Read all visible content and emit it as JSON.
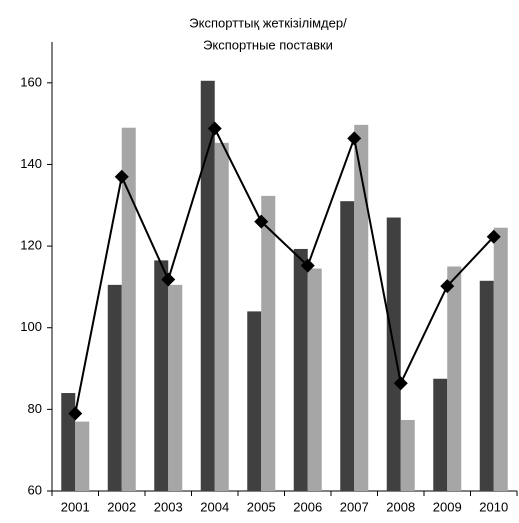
{
  "chart_data": {
    "type": "bar_line",
    "title": [
      "Экспорттық жеткізілімдер/",
      "Экспортные поставки"
    ],
    "categories": [
      "2001",
      "2002",
      "2003",
      "2004",
      "2005",
      "2006",
      "2007",
      "2008",
      "2009",
      "2010"
    ],
    "series": [
      {
        "type": "bar",
        "color": "#404040",
        "values": [
          84,
          110.5,
          116.5,
          160.5,
          104,
          119.3,
          131,
          127,
          87.5,
          111.5
        ]
      },
      {
        "type": "bar",
        "color": "#a6a6a6",
        "values": [
          77,
          149,
          110.5,
          145.3,
          132.3,
          114.5,
          149.7,
          77.4,
          115,
          124.5
        ]
      },
      {
        "type": "line",
        "color": "#000000",
        "values": [
          79,
          137,
          111.8,
          148.8,
          126,
          115.2,
          146.4,
          86.4,
          110.2,
          122.3
        ]
      }
    ],
    "ylim": [
      60,
      170
    ],
    "yticks": [
      60,
      80,
      100,
      120,
      140,
      160
    ],
    "grid": false
  }
}
